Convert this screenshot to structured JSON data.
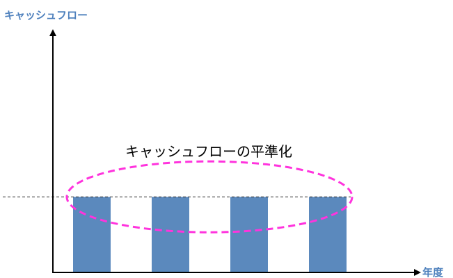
{
  "diagram": {
    "y_axis_label": "キャッシュフロー",
    "x_axis_label": "年度",
    "annotation": "キャッシュフローの平準化"
  },
  "chart_data": {
    "type": "bar",
    "categories": [
      "",
      "",
      "",
      ""
    ],
    "values": [
      1,
      1,
      1,
      1
    ],
    "ylim": [
      0,
      3.2
    ],
    "reference_line": 1,
    "grid": false
  },
  "colors": {
    "bar": "#5b89bd",
    "axis": "#000000",
    "axis_label": "#4f81bd",
    "ellipse": "#ff33dd",
    "reference_line": "#333333",
    "annotation_text": "#000000"
  }
}
